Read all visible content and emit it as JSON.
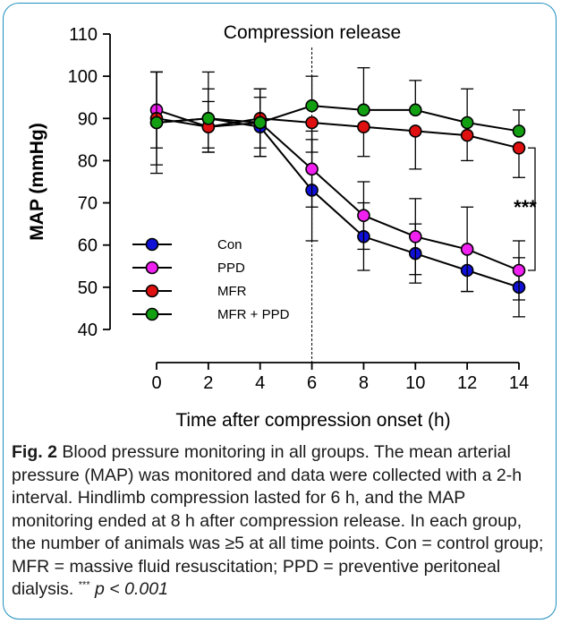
{
  "chart_data": {
    "type": "line",
    "title": "Compression release",
    "xlabel": "Time after compression onset (h)",
    "ylabel": "MAP (mmHg)",
    "x": [
      0,
      2,
      4,
      6,
      8,
      10,
      12,
      14
    ],
    "xlim": [
      0,
      14
    ],
    "ylim": [
      40,
      110
    ],
    "yticks": [
      40,
      50,
      60,
      70,
      80,
      90,
      100,
      110
    ],
    "grid": false,
    "legend_position": "bottom-left",
    "annotation": "***",
    "series": [
      {
        "name": "Con",
        "color": "#1010d8",
        "values": [
          89,
          90,
          88,
          73,
          62,
          58,
          54,
          50
        ],
        "error": [
          12,
          7,
          7,
          12,
          8,
          7,
          5,
          7
        ],
        "error_dir": "both"
      },
      {
        "name": "PPD",
        "color": "#f020f0",
        "values": [
          92,
          88,
          89,
          78,
          67,
          62,
          59,
          54
        ],
        "error": [
          9,
          6,
          8,
          9,
          8,
          9,
          10,
          7
        ],
        "error_dir": "both"
      },
      {
        "name": "MFR",
        "color": "#e01010",
        "values": [
          90,
          88,
          90,
          89,
          88,
          87,
          86,
          83
        ],
        "error": [
          11,
          6,
          7,
          7,
          7,
          9,
          6,
          7
        ],
        "error_dir": "down"
      },
      {
        "name": "MFR + PPD",
        "color": "#12a012",
        "values": [
          89,
          90,
          89,
          93,
          92,
          92,
          89,
          87
        ],
        "error": [
          12,
          11,
          8,
          7,
          10,
          7,
          8,
          5
        ],
        "error_dir": "up"
      }
    ],
    "vline_x": 6
  },
  "caption": {
    "label": "Fig. 2",
    "text": "Blood pressure monitoring in all groups. The mean arterial pressure (MAP) was monitored and data were collected with a 2-h interval. Hindlimb compression lasted for 6 h, and the MAP monitoring ended at 8 h after compression release. In each group, the number of animals was ≥5 at all time points. Con = control group; MFR = massive fluid resuscitation; PPD = preventive peritoneal dialysis.",
    "sup": "***",
    "pvalue": "p < 0.001"
  }
}
